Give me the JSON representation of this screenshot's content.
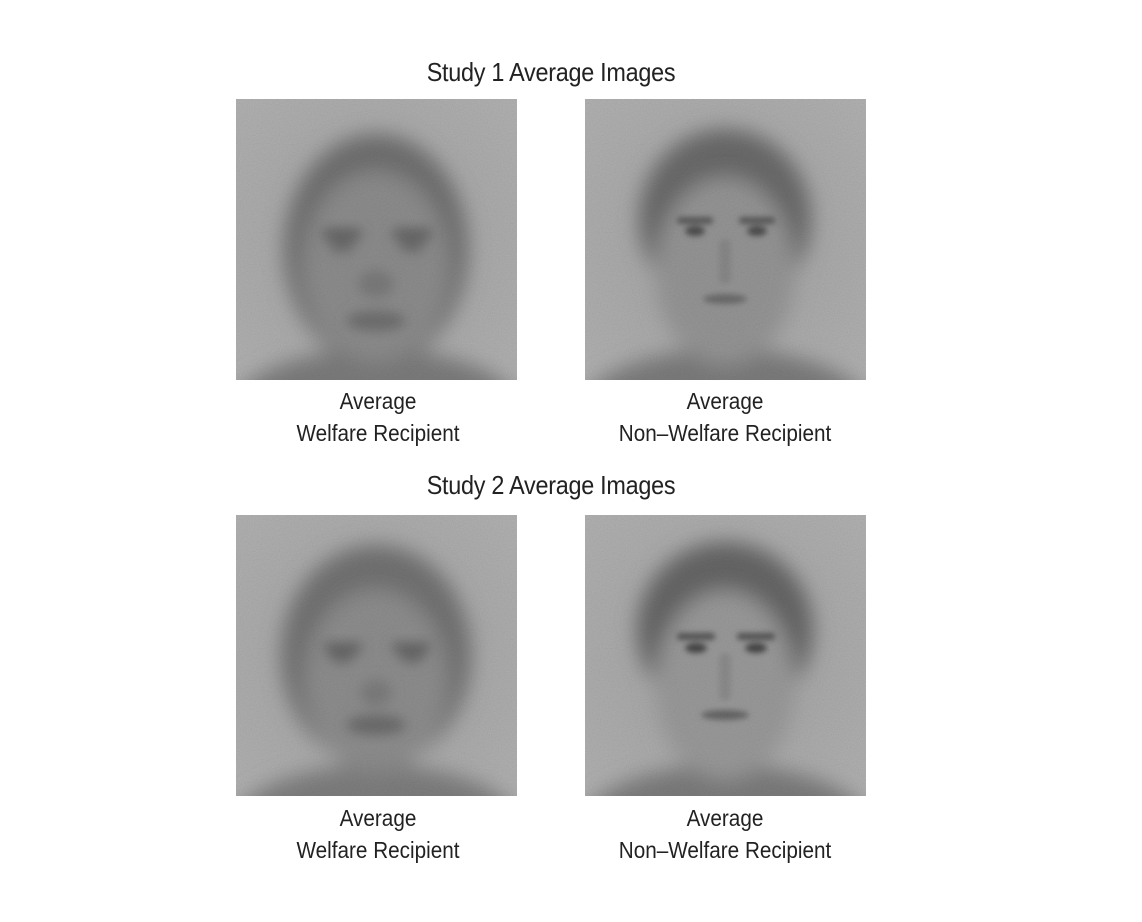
{
  "figure": {
    "studies": [
      {
        "title": "Study 1 Average Images",
        "panels": [
          {
            "line1": "Average",
            "line2": "Welfare Recipient"
          },
          {
            "line1": "Average",
            "line2": "Non–Welfare Recipient"
          }
        ]
      },
      {
        "title": "Study 2 Average Images",
        "panels": [
          {
            "line1": "Average",
            "line2": "Welfare Recipient"
          },
          {
            "line1": "Average",
            "line2": "Non–Welfare Recipient"
          }
        ]
      }
    ]
  }
}
